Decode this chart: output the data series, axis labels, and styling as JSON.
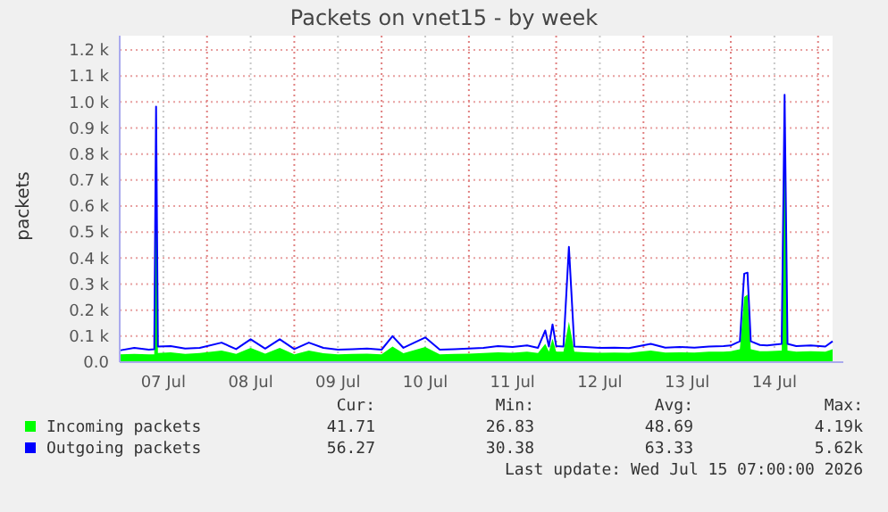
{
  "chart_data": {
    "type": "line",
    "title": "Packets on vnet15 - by week",
    "ylabel": "packets",
    "x": [
      "2026-07-07T00:00",
      "2026-07-07T04:00",
      "2026-07-07T08:00",
      "2026-07-07T09:30",
      "2026-07-07T10:00",
      "2026-07-07T10:30",
      "2026-07-07T14:00",
      "2026-07-07T18:00",
      "2026-07-07T22:00",
      "2026-07-08T04:00",
      "2026-07-08T08:00",
      "2026-07-08T12:00",
      "2026-07-08T16:00",
      "2026-07-08T20:00",
      "2026-07-09T00:00",
      "2026-07-09T04:00",
      "2026-07-09T08:00",
      "2026-07-09T12:00",
      "2026-07-09T16:00",
      "2026-07-09T20:00",
      "2026-07-10T00:00",
      "2026-07-10T03:00",
      "2026-07-10T06:00",
      "2026-07-10T12:00",
      "2026-07-10T16:00",
      "2026-07-10T20:00",
      "2026-07-11T00:00",
      "2026-07-11T04:00",
      "2026-07-11T08:00",
      "2026-07-11T12:00",
      "2026-07-11T16:00",
      "2026-07-11T19:00",
      "2026-07-11T21:00",
      "2026-07-11T22:00",
      "2026-07-11T23:00",
      "2026-07-12T00:00",
      "2026-07-12T02:00",
      "2026-07-12T03:30",
      "2026-07-12T05:00",
      "2026-07-12T08:00",
      "2026-07-12T12:00",
      "2026-07-12T16:00",
      "2026-07-12T20:00",
      "2026-07-13T02:00",
      "2026-07-13T06:00",
      "2026-07-13T10:00",
      "2026-07-13T14:00",
      "2026-07-13T18:00",
      "2026-07-13T22:00",
      "2026-07-14T00:00",
      "2026-07-14T02:30",
      "2026-07-14T03:42",
      "2026-07-14T04:36",
      "2026-07-14T05:30",
      "2026-07-14T08:00",
      "2026-07-14T10:00",
      "2026-07-14T14:00",
      "2026-07-14T14:48",
      "2026-07-14T15:36",
      "2026-07-14T18:00",
      "2026-07-14T22:00",
      "2026-07-15T02:00",
      "2026-07-15T04:00"
    ],
    "series": [
      {
        "name": "Incoming packets",
        "type": "area",
        "color": "#00ff00",
        "values": [
          30,
          32,
          30,
          30,
          940,
          35,
          38,
          32,
          35,
          45,
          32,
          55,
          33,
          55,
          30,
          45,
          34,
          30,
          32,
          33,
          30,
          60,
          34,
          58,
          30,
          32,
          33,
          35,
          38,
          36,
          40,
          35,
          70,
          40,
          90,
          40,
          40,
          155,
          40,
          38,
          36,
          37,
          36,
          45,
          37,
          38,
          37,
          40,
          40,
          42,
          50,
          250,
          260,
          50,
          42,
          42,
          45,
          980,
          45,
          40,
          42,
          40,
          50
        ]
      },
      {
        "name": "Outgoing packets",
        "color": "#0000ff",
        "values": [
          45,
          55,
          48,
          50,
          982,
          60,
          62,
          52,
          55,
          75,
          50,
          88,
          52,
          88,
          50,
          75,
          55,
          48,
          50,
          52,
          48,
          100,
          55,
          95,
          48,
          50,
          52,
          55,
          62,
          58,
          64,
          55,
          122,
          60,
          145,
          62,
          60,
          443,
          60,
          58,
          55,
          56,
          54,
          70,
          56,
          58,
          56,
          60,
          62,
          64,
          80,
          340,
          344,
          80,
          66,
          64,
          70,
          1028,
          70,
          62,
          64,
          60,
          80
        ]
      }
    ],
    "xlim": [
      "2026-07-07T00:00",
      "2026-07-15T04:00"
    ],
    "xticks": [
      {
        "value": "2026-07-07T00:00",
        "label": null
      },
      {
        "value": "2026-07-07T12:00",
        "label": "07 Jul"
      },
      {
        "value": "2026-07-08T00:00",
        "label": null
      },
      {
        "value": "2026-07-08T12:00",
        "label": "08 Jul"
      },
      {
        "value": "2026-07-09T00:00",
        "label": null
      },
      {
        "value": "2026-07-09T12:00",
        "label": "09 Jul"
      },
      {
        "value": "2026-07-10T00:00",
        "label": null
      },
      {
        "value": "2026-07-10T12:00",
        "label": "10 Jul"
      },
      {
        "value": "2026-07-11T00:00",
        "label": null
      },
      {
        "value": "2026-07-11T12:00",
        "label": "11 Jul"
      },
      {
        "value": "2026-07-12T00:00",
        "label": null
      },
      {
        "value": "2026-07-12T12:00",
        "label": "12 Jul"
      },
      {
        "value": "2026-07-13T00:00",
        "label": null
      },
      {
        "value": "2026-07-13T12:00",
        "label": "13 Jul"
      },
      {
        "value": "2026-07-14T00:00",
        "label": null
      },
      {
        "value": "2026-07-14T12:00",
        "label": "14 Jul"
      },
      {
        "value": "2026-07-15T00:00",
        "label": null
      }
    ],
    "ylim": [
      0,
      1200
    ],
    "yticks": [
      {
        "value": 0,
        "label": "0.0"
      },
      {
        "value": 100,
        "label": "0.1 k"
      },
      {
        "value": 200,
        "label": "0.2 k"
      },
      {
        "value": 300,
        "label": "0.3 k"
      },
      {
        "value": 400,
        "label": "0.4 k"
      },
      {
        "value": 500,
        "label": "0.5 k"
      },
      {
        "value": 600,
        "label": "0.6 k"
      },
      {
        "value": 700,
        "label": "0.7 k"
      },
      {
        "value": 800,
        "label": "0.8 k"
      },
      {
        "value": 900,
        "label": "0.9 k"
      },
      {
        "value": 1000,
        "label": "1.0 k"
      },
      {
        "value": 1100,
        "label": "1.1 k"
      },
      {
        "value": 1200,
        "label": "1.2 k"
      }
    ],
    "grid": true,
    "legend": "bottom",
    "annotations": [
      "Cur:",
      "Min:",
      "Avg:",
      "Max:",
      "41.71",
      "26.83",
      "48.69",
      "4.19k",
      "56.27",
      "30.38",
      "63.33",
      "5.62k",
      "Last update: Wed Jul 15 07:00:00 2026"
    ]
  }
}
